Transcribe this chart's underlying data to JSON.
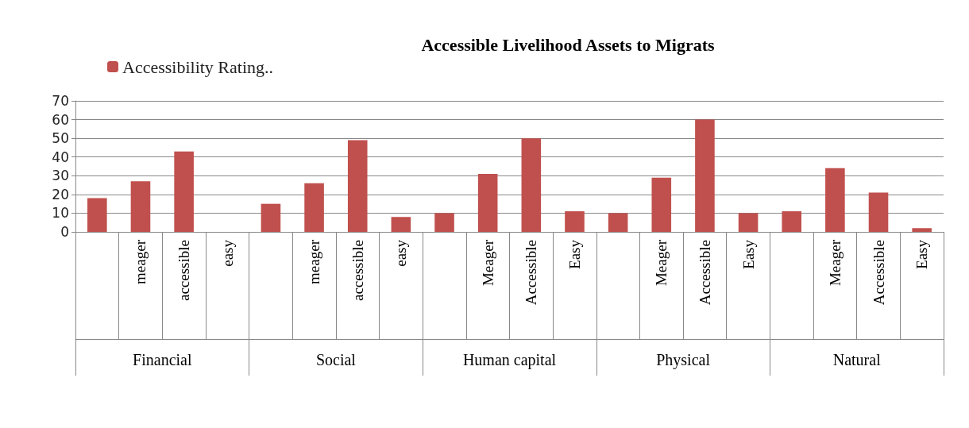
{
  "chart_data": {
    "type": "bar",
    "title": "Accessible Livelihood Assets to Migrats",
    "categories": [
      null,
      "meager",
      "accessible",
      "easy",
      null,
      "meager",
      "accessible",
      "easy",
      null,
      "Meager",
      "Accessible",
      "Easy",
      null,
      "Meager",
      "Accessible",
      "Easy",
      null,
      "Meager",
      "Accessible",
      "Easy"
    ],
    "annotations": [
      "Financial",
      "Social",
      "Human capital",
      "Physical",
      "Natural"
    ],
    "series": [
      {
        "name": "Accessibility Rating..",
        "color": "#c0504d",
        "values": [
          18,
          27,
          43,
          0,
          15,
          26,
          49,
          8,
          10,
          31,
          50,
          11,
          10,
          29,
          60,
          10,
          11,
          34,
          21,
          2
        ]
      }
    ],
    "ylim": [
      0,
      70
    ],
    "yticks": [
      0,
      10,
      20,
      30,
      40,
      50,
      60,
      70
    ],
    "grid": "y",
    "legend": "top left"
  }
}
